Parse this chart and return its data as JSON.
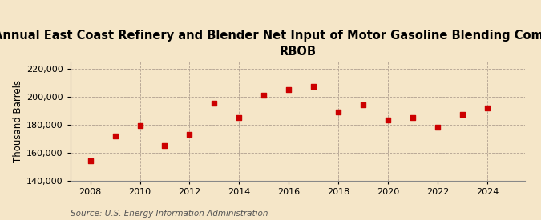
{
  "title_line1": "Annual East Coast Refinery and Blender Net Input of Motor Gasoline Blending Components,",
  "title_line2": "RBOB",
  "ylabel": "Thousand Barrels",
  "source": "Source: U.S. Energy Information Administration",
  "background_color": "#f5e6c8",
  "plot_bg_color": "#f5e6c8",
  "marker_color": "#cc0000",
  "years": [
    2008,
    2009,
    2010,
    2011,
    2012,
    2013,
    2014,
    2015,
    2016,
    2017,
    2018,
    2019,
    2020,
    2021,
    2022,
    2023,
    2024
  ],
  "values": [
    154000,
    172000,
    179000,
    165000,
    173000,
    195000,
    185000,
    201000,
    205000,
    207000,
    189000,
    194000,
    183000,
    185000,
    178000,
    187000,
    192000
  ],
  "ylim": [
    140000,
    225000
  ],
  "yticks": [
    140000,
    160000,
    180000,
    200000,
    220000
  ],
  "xticks": [
    2008,
    2010,
    2012,
    2014,
    2016,
    2018,
    2020,
    2022,
    2024
  ],
  "xlim": [
    2007.2,
    2025.5
  ],
  "title_fontsize": 10.5,
  "axis_fontsize": 8.5,
  "tick_fontsize": 8,
  "source_fontsize": 7.5
}
